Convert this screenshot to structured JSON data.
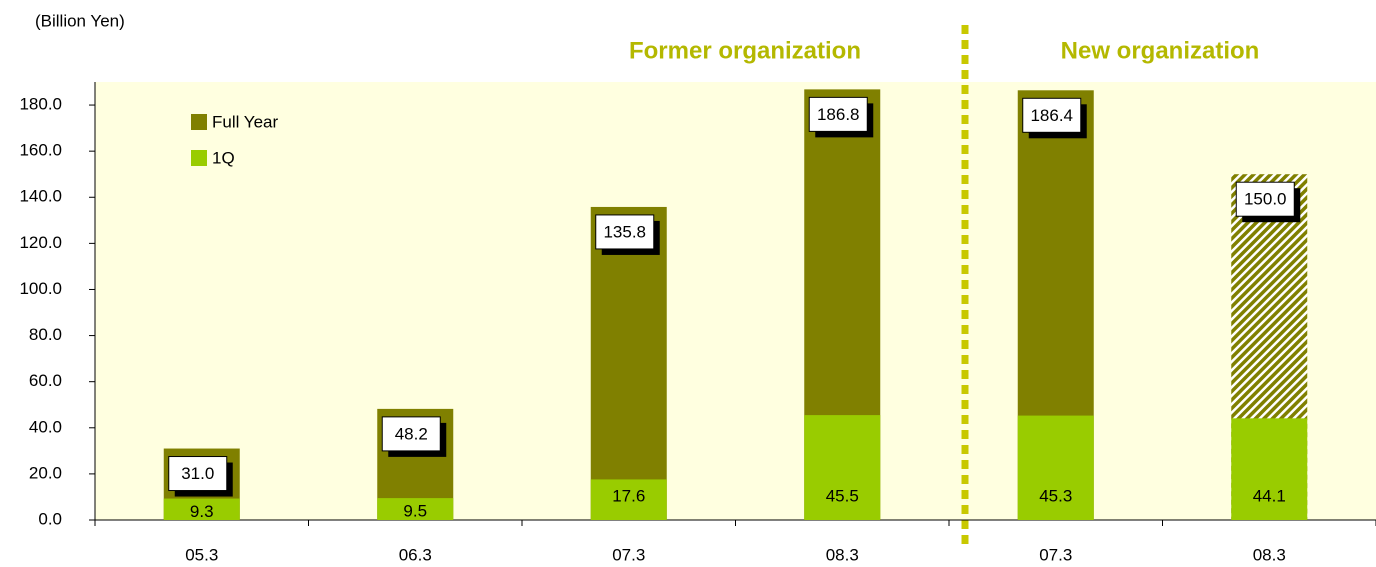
{
  "chart_data": {
    "type": "bar",
    "unit_label": "(Billion Yen)",
    "annotations": [
      "Former organization",
      "New organization"
    ],
    "categories": [
      "05.3",
      "06.3",
      "07.3",
      "08.3",
      "07.3",
      "08.3"
    ],
    "series": [
      {
        "name": "Full Year",
        "color": "#808000",
        "values": [
          31.0,
          48.2,
          135.8,
          186.8,
          186.4,
          150.0
        ],
        "value_labels": [
          "31.0",
          "48.2",
          "135.8",
          "186.8",
          "186.4",
          "150.0"
        ],
        "hatch": [
          false,
          false,
          false,
          false,
          false,
          true
        ]
      },
      {
        "name": "1Q",
        "color": "#99cc00",
        "values": [
          9.3,
          9.5,
          17.6,
          45.5,
          45.3,
          44.1
        ],
        "value_labels": [
          "9.3",
          "9.5",
          "17.6",
          "45.5",
          "45.3",
          "44.1"
        ]
      }
    ],
    "ylim": [
      0,
      190
    ],
    "yticks": [
      {
        "value": 0,
        "label": "0.0"
      },
      {
        "value": 20,
        "label": "20.0"
      },
      {
        "value": 40,
        "label": "40.0"
      },
      {
        "value": 60,
        "label": "60.0"
      },
      {
        "value": 80,
        "label": "80.0"
      },
      {
        "value": 100,
        "label": "100.0"
      },
      {
        "value": 120,
        "label": "120.0"
      },
      {
        "value": 140,
        "label": "140.0"
      },
      {
        "value": 160,
        "label": "160.0"
      },
      {
        "value": 180,
        "label": "180.0"
      }
    ],
    "overlap": true
  }
}
